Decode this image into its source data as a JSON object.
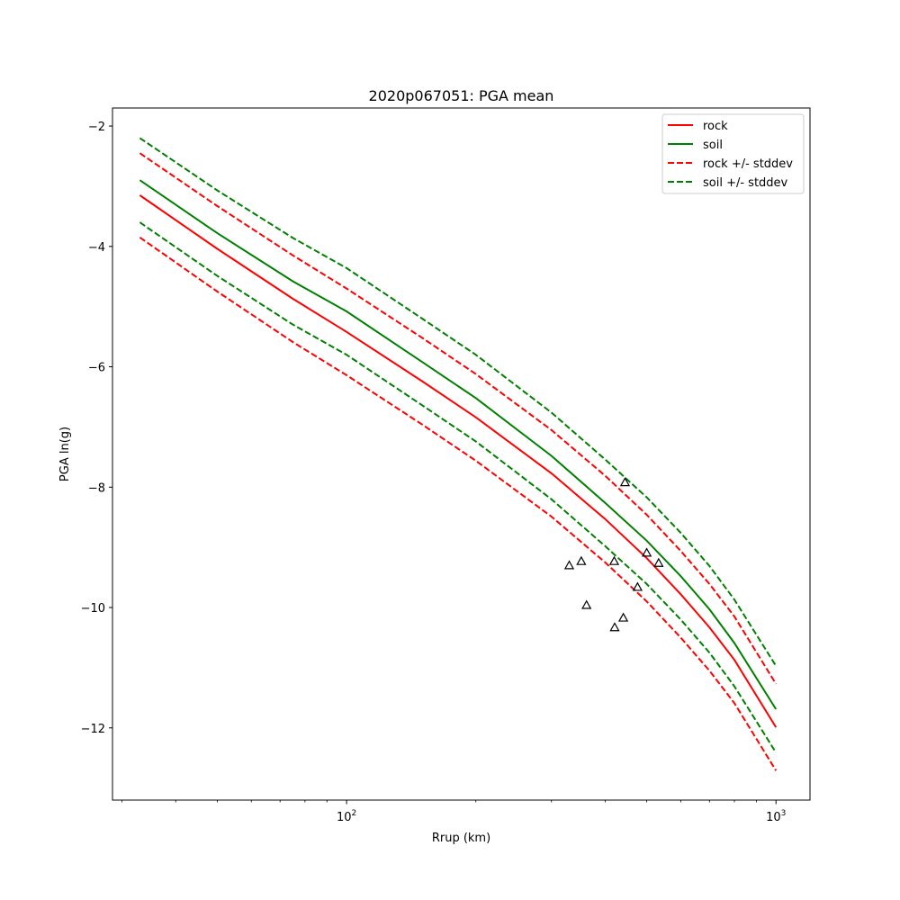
{
  "chart_data": {
    "type": "line",
    "title": "2020p067051: PGA mean",
    "xlabel": "Rrup (km)",
    "ylabel": "PGA ln(g)",
    "xscale": "log",
    "xlim": [
      28.5,
      1200
    ],
    "ylim": [
      -13.2,
      -1.7
    ],
    "x_major_ticks": [
      {
        "value": 100,
        "base": "10",
        "exp": "2"
      },
      {
        "value": 1000,
        "base": "10",
        "exp": "3"
      }
    ],
    "y_ticks": [
      {
        "value": -2,
        "label": "−2"
      },
      {
        "value": -4,
        "label": "−4"
      },
      {
        "value": -6,
        "label": "−6"
      },
      {
        "value": -8,
        "label": "−8"
      },
      {
        "value": -10,
        "label": "−10"
      },
      {
        "value": -12,
        "label": "−12"
      }
    ],
    "grid": false,
    "legend_position": "top-right",
    "x": [
      33,
      50,
      75,
      100,
      150,
      200,
      300,
      400,
      500,
      600,
      700,
      800,
      1000
    ],
    "series": [
      {
        "name": "rock",
        "color": "#ff0000",
        "style": "solid",
        "values": [
          -3.15,
          -4.04,
          -4.87,
          -5.42,
          -6.24,
          -6.84,
          -7.77,
          -8.53,
          -9.18,
          -9.78,
          -10.33,
          -10.87,
          -11.99
        ]
      },
      {
        "name": "soil",
        "color": "#008000",
        "style": "solid",
        "values": [
          -2.9,
          -3.78,
          -4.58,
          -5.08,
          -5.92,
          -6.52,
          -7.48,
          -8.26,
          -8.89,
          -9.48,
          -10.03,
          -10.59,
          -11.69
        ]
      },
      {
        "name": "rock +/- stddev",
        "color": "#ff0000",
        "style": "dashed",
        "values": [
          -2.45,
          -3.33,
          -4.15,
          -4.7,
          -5.52,
          -6.12,
          -7.05,
          -7.81,
          -8.46,
          -9.06,
          -9.61,
          -10.15,
          -11.27
        ]
      },
      {
        "name": "rock +/- stddev",
        "color": "#ff0000",
        "style": "dashed",
        "legend": false,
        "values": [
          -3.85,
          -4.75,
          -5.59,
          -6.14,
          -6.96,
          -7.56,
          -8.49,
          -9.25,
          -9.9,
          -10.5,
          -11.05,
          -11.59,
          -12.71
        ]
      },
      {
        "name": "soil +/- stddev",
        "color": "#008000",
        "style": "dashed",
        "values": [
          -2.2,
          -3.07,
          -3.86,
          -4.36,
          -5.2,
          -5.8,
          -6.76,
          -7.54,
          -8.17,
          -8.76,
          -9.31,
          -9.87,
          -10.97
        ]
      },
      {
        "name": "soil +/- stddev",
        "color": "#008000",
        "style": "dashed",
        "legend": false,
        "values": [
          -3.6,
          -4.49,
          -5.3,
          -5.8,
          -6.64,
          -7.24,
          -8.2,
          -8.98,
          -9.61,
          -10.2,
          -10.75,
          -11.31,
          -12.41
        ]
      }
    ],
    "observations": {
      "marker": "triangle",
      "points": [
        {
          "x": 330,
          "y": -9.3
        },
        {
          "x": 352,
          "y": -9.23
        },
        {
          "x": 362,
          "y": -9.96
        },
        {
          "x": 420,
          "y": -9.23
        },
        {
          "x": 421,
          "y": -10.33
        },
        {
          "x": 441,
          "y": -10.17
        },
        {
          "x": 445,
          "y": -7.92
        },
        {
          "x": 476,
          "y": -9.66
        },
        {
          "x": 500,
          "y": -9.09
        },
        {
          "x": 533,
          "y": -9.26
        }
      ]
    }
  }
}
